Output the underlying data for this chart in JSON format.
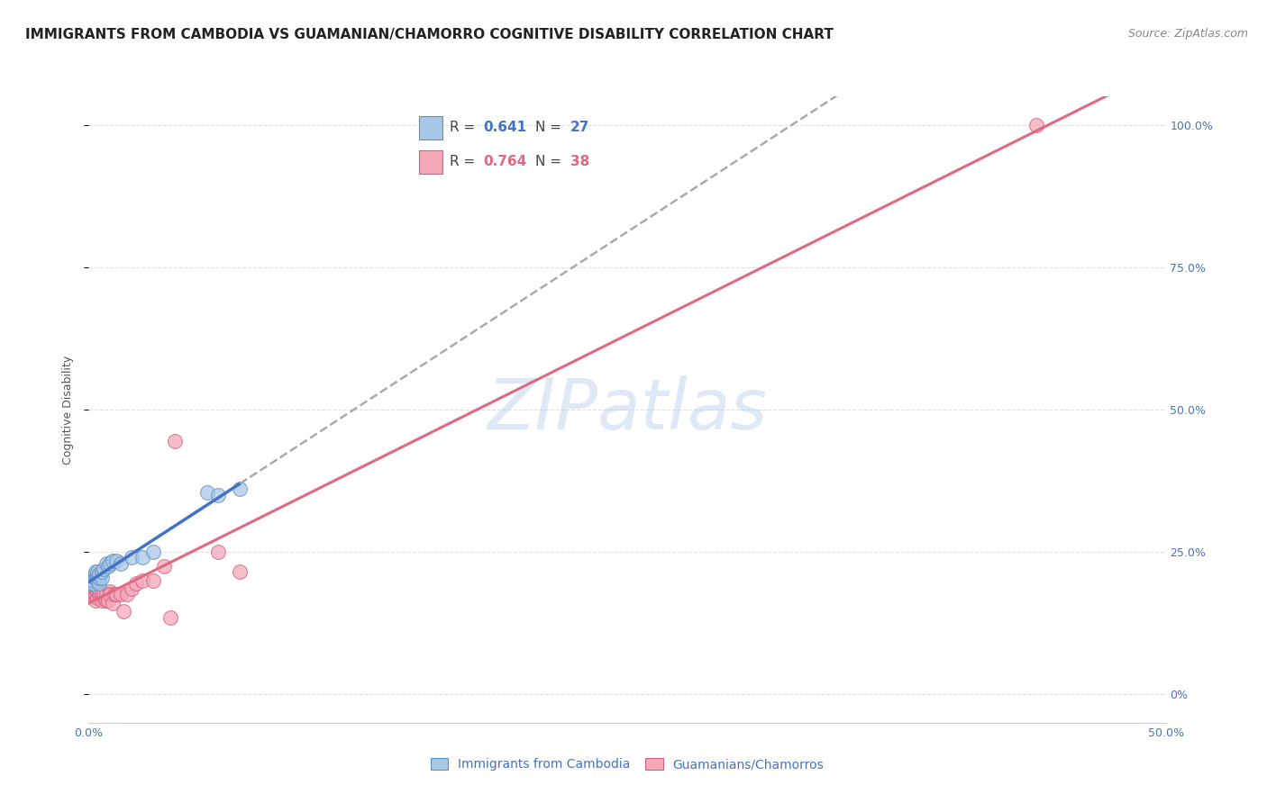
{
  "title": "IMMIGRANTS FROM CAMBODIA VS GUAMANIAN/CHAMORRO COGNITIVE DISABILITY CORRELATION CHART",
  "source": "Source: ZipAtlas.com",
  "ylabel": "Cognitive Disability",
  "watermark": "ZIPatlas",
  "series1_color": "#a8c8e8",
  "series2_color": "#f4a8b8",
  "series1_edge": "#6090c0",
  "series2_edge": "#d06080",
  "trendline1_color": "#4472c4",
  "trendline2_color": "#e06880",
  "trendline_dash_color": "#aaaaaa",
  "background_color": "#ffffff",
  "grid_color": "#dddddd",
  "legend_color1": "#a8c8e8",
  "legend_color2": "#f4a8b8",
  "r1": "0.641",
  "n1": "27",
  "r2": "0.764",
  "n2": "38",
  "text_blue": "#4472c4",
  "text_pink": "#e06880",
  "text_dark": "#444444",
  "cambodia_x": [
    0.001,
    0.002,
    0.002,
    0.003,
    0.003,
    0.003,
    0.004,
    0.004,
    0.004,
    0.005,
    0.005,
    0.005,
    0.006,
    0.006,
    0.007,
    0.008,
    0.009,
    0.01,
    0.011,
    0.013,
    0.015,
    0.02,
    0.025,
    0.03,
    0.055,
    0.06,
    0.07
  ],
  "cambodia_y": [
    0.195,
    0.195,
    0.2,
    0.205,
    0.21,
    0.215,
    0.2,
    0.21,
    0.215,
    0.195,
    0.205,
    0.21,
    0.205,
    0.215,
    0.22,
    0.23,
    0.225,
    0.23,
    0.235,
    0.235,
    0.23,
    0.24,
    0.24,
    0.25,
    0.355,
    0.35,
    0.36
  ],
  "guamanian_x": [
    0.001,
    0.001,
    0.002,
    0.002,
    0.002,
    0.003,
    0.003,
    0.003,
    0.004,
    0.004,
    0.005,
    0.005,
    0.005,
    0.006,
    0.006,
    0.007,
    0.007,
    0.008,
    0.008,
    0.009,
    0.01,
    0.01,
    0.011,
    0.012,
    0.013,
    0.015,
    0.016,
    0.018,
    0.02,
    0.022,
    0.025,
    0.03,
    0.035,
    0.038,
    0.04,
    0.06,
    0.07,
    0.44
  ],
  "guamanian_y": [
    0.175,
    0.185,
    0.18,
    0.175,
    0.19,
    0.165,
    0.175,
    0.185,
    0.17,
    0.18,
    0.175,
    0.18,
    0.185,
    0.165,
    0.175,
    0.17,
    0.175,
    0.165,
    0.175,
    0.165,
    0.18,
    0.175,
    0.16,
    0.175,
    0.175,
    0.175,
    0.145,
    0.175,
    0.185,
    0.195,
    0.2,
    0.2,
    0.225,
    0.135,
    0.445,
    0.25,
    0.215,
    1.0
  ],
  "xlim": [
    0.0,
    0.5
  ],
  "ylim": [
    -0.05,
    1.05
  ],
  "yticks": [
    0.0,
    0.25,
    0.5,
    0.75,
    1.0
  ],
  "ytick_labels": [
    "0%",
    "25.0%",
    "50.0%",
    "75.0%",
    "100.0%"
  ],
  "xticks": [
    0.0,
    0.1,
    0.2,
    0.3,
    0.4,
    0.5
  ],
  "xtick_labels_show": [
    "0.0%",
    "",
    "",
    "",
    "",
    "50.0%"
  ],
  "title_fontsize": 11,
  "source_fontsize": 9,
  "axis_label_fontsize": 9,
  "tick_fontsize": 9,
  "legend_fontsize": 11
}
